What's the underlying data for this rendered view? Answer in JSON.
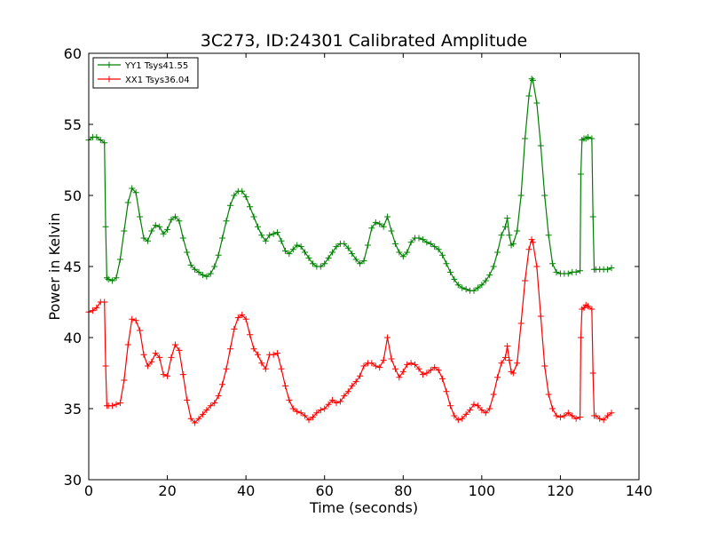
{
  "chart_data": {
    "type": "line",
    "title": "3C273, ID:24301 Calibrated Amplitude",
    "xlabel": "Time (seconds)",
    "ylabel": "Power in Kelvin",
    "xlim": [
      0,
      140
    ],
    "ylim": [
      30,
      60
    ],
    "xticks": [
      "0",
      "20",
      "40",
      "60",
      "80",
      "100",
      "120",
      "140"
    ],
    "yticks": [
      "30",
      "35",
      "40",
      "45",
      "50",
      "55",
      "60"
    ],
    "grid": false,
    "legend_position": "top-left",
    "marker": "+",
    "series": [
      {
        "name": "YY1 Tsys41.55",
        "color": "#008000",
        "points": [
          [
            0,
            53.9
          ],
          [
            1,
            54.1
          ],
          [
            2,
            54.1
          ],
          [
            3,
            53.9
          ],
          [
            4,
            53.7
          ],
          [
            4.3,
            47.8
          ],
          [
            4.6,
            44.2
          ],
          [
            5,
            44.1
          ],
          [
            6,
            44.0
          ],
          [
            7,
            44.2
          ],
          [
            8,
            45.5
          ],
          [
            9,
            47.5
          ],
          [
            10,
            49.5
          ],
          [
            11,
            50.5
          ],
          [
            12,
            50.2
          ],
          [
            13,
            48.5
          ],
          [
            14,
            47.0
          ],
          [
            15,
            46.8
          ],
          [
            16,
            47.5
          ],
          [
            17,
            47.9
          ],
          [
            18,
            47.8
          ],
          [
            19,
            47.3
          ],
          [
            20,
            47.6
          ],
          [
            21,
            48.3
          ],
          [
            22,
            48.5
          ],
          [
            23,
            48.2
          ],
          [
            24,
            47.0
          ],
          [
            25,
            46.0
          ],
          [
            26,
            45.1
          ],
          [
            27,
            44.8
          ],
          [
            28,
            44.6
          ],
          [
            29,
            44.4
          ],
          [
            30,
            44.3
          ],
          [
            31,
            44.5
          ],
          [
            32,
            45.0
          ],
          [
            33,
            45.8
          ],
          [
            34,
            47.0
          ],
          [
            35,
            48.2
          ],
          [
            36,
            49.3
          ],
          [
            37,
            50.0
          ],
          [
            38,
            50.3
          ],
          [
            39,
            50.3
          ],
          [
            40,
            49.9
          ],
          [
            41,
            49.2
          ],
          [
            42,
            48.5
          ],
          [
            43,
            47.8
          ],
          [
            44,
            47.2
          ],
          [
            45,
            46.8
          ],
          [
            46,
            47.2
          ],
          [
            47,
            47.3
          ],
          [
            48,
            47.4
          ],
          [
            49,
            46.8
          ],
          [
            50,
            46.1
          ],
          [
            51,
            45.9
          ],
          [
            52,
            46.2
          ],
          [
            53,
            46.5
          ],
          [
            54,
            46.4
          ],
          [
            55,
            46.0
          ],
          [
            56,
            45.6
          ],
          [
            57,
            45.2
          ],
          [
            58,
            45.0
          ],
          [
            59,
            45.0
          ],
          [
            60,
            45.2
          ],
          [
            61,
            45.6
          ],
          [
            62,
            46.0
          ],
          [
            63,
            46.4
          ],
          [
            64,
            46.6
          ],
          [
            65,
            46.6
          ],
          [
            66,
            46.3
          ],
          [
            67,
            45.9
          ],
          [
            68,
            45.5
          ],
          [
            69,
            45.2
          ],
          [
            70,
            45.4
          ],
          [
            71,
            46.5
          ],
          [
            72,
            47.7
          ],
          [
            73,
            48.1
          ],
          [
            74,
            48.0
          ],
          [
            75,
            47.8
          ],
          [
            76,
            48.5
          ],
          [
            77,
            47.5
          ],
          [
            78,
            46.6
          ],
          [
            79,
            46.0
          ],
          [
            80,
            45.7
          ],
          [
            81,
            46.0
          ],
          [
            82,
            46.7
          ],
          [
            83,
            47.0
          ],
          [
            84,
            47.0
          ],
          [
            85,
            46.9
          ],
          [
            86,
            46.7
          ],
          [
            87,
            46.6
          ],
          [
            88,
            46.4
          ],
          [
            89,
            46.2
          ],
          [
            90,
            45.8
          ],
          [
            91,
            45.2
          ],
          [
            92,
            44.6
          ],
          [
            93,
            44.1
          ],
          [
            94,
            43.7
          ],
          [
            95,
            43.5
          ],
          [
            96,
            43.4
          ],
          [
            97,
            43.3
          ],
          [
            98,
            43.3
          ],
          [
            99,
            43.5
          ],
          [
            100,
            43.7
          ],
          [
            101,
            44.0
          ],
          [
            102,
            44.4
          ],
          [
            103,
            45.0
          ],
          [
            104,
            46.0
          ],
          [
            105,
            47.2
          ],
          [
            106,
            47.8
          ],
          [
            106.5,
            48.4
          ],
          [
            107,
            47.2
          ],
          [
            107.5,
            46.5
          ],
          [
            108,
            46.6
          ],
          [
            109,
            47.5
          ],
          [
            110,
            50.0
          ],
          [
            111,
            54.0
          ],
          [
            112,
            57.0
          ],
          [
            112.7,
            58.2
          ],
          [
            113,
            58.1
          ],
          [
            114,
            56.5
          ],
          [
            115,
            53.5
          ],
          [
            116,
            50.0
          ],
          [
            117,
            47.2
          ],
          [
            118,
            45.2
          ],
          [
            119,
            44.6
          ],
          [
            120,
            44.5
          ],
          [
            121,
            44.5
          ],
          [
            122,
            44.5
          ],
          [
            123,
            44.6
          ],
          [
            124,
            44.6
          ],
          [
            125,
            44.7
          ],
          [
            125.2,
            51.5
          ],
          [
            125.5,
            53.9
          ],
          [
            126,
            54.0
          ],
          [
            126.5,
            54.0
          ],
          [
            127,
            54.1
          ],
          [
            128,
            54.0
          ],
          [
            128.3,
            48.5
          ],
          [
            128.6,
            44.8
          ],
          [
            129,
            44.8
          ],
          [
            130,
            44.8
          ],
          [
            131,
            44.8
          ],
          [
            132,
            44.8
          ],
          [
            133,
            44.9
          ]
        ]
      },
      {
        "name": "XX1 Tsys36.04",
        "color": "#ff0000",
        "points": [
          [
            0,
            41.8
          ],
          [
            1,
            41.9
          ],
          [
            2,
            42.1
          ],
          [
            3,
            42.5
          ],
          [
            4,
            42.5
          ],
          [
            4.3,
            38.0
          ],
          [
            4.6,
            35.2
          ],
          [
            5,
            35.2
          ],
          [
            6,
            35.2
          ],
          [
            7,
            35.3
          ],
          [
            8,
            35.4
          ],
          [
            9,
            37.0
          ],
          [
            10,
            39.5
          ],
          [
            11,
            41.3
          ],
          [
            12,
            41.2
          ],
          [
            13,
            40.5
          ],
          [
            14,
            38.8
          ],
          [
            15,
            38.0
          ],
          [
            16,
            38.3
          ],
          [
            17,
            38.9
          ],
          [
            18,
            38.6
          ],
          [
            19,
            37.4
          ],
          [
            20,
            37.3
          ],
          [
            21,
            38.6
          ],
          [
            22,
            39.5
          ],
          [
            23,
            39.1
          ],
          [
            24,
            37.4
          ],
          [
            25,
            35.6
          ],
          [
            26,
            34.3
          ],
          [
            27,
            34.0
          ],
          [
            28,
            34.3
          ],
          [
            29,
            34.6
          ],
          [
            30,
            34.9
          ],
          [
            31,
            35.2
          ],
          [
            32,
            35.4
          ],
          [
            33,
            35.9
          ],
          [
            34,
            36.7
          ],
          [
            35,
            37.8
          ],
          [
            36,
            39.2
          ],
          [
            37,
            40.6
          ],
          [
            38,
            41.4
          ],
          [
            39,
            41.6
          ],
          [
            40,
            41.3
          ],
          [
            41,
            40.2
          ],
          [
            42,
            39.2
          ],
          [
            43,
            38.8
          ],
          [
            44,
            38.2
          ],
          [
            45,
            37.8
          ],
          [
            46,
            38.8
          ],
          [
            47,
            38.8
          ],
          [
            48,
            38.9
          ],
          [
            49,
            37.8
          ],
          [
            50,
            36.6
          ],
          [
            51,
            35.6
          ],
          [
            52,
            35.0
          ],
          [
            53,
            34.8
          ],
          [
            54,
            34.7
          ],
          [
            55,
            34.5
          ],
          [
            56,
            34.2
          ],
          [
            57,
            34.4
          ],
          [
            58,
            34.7
          ],
          [
            59,
            34.9
          ],
          [
            60,
            35.0
          ],
          [
            61,
            35.3
          ],
          [
            62,
            35.6
          ],
          [
            63,
            35.4
          ],
          [
            64,
            35.5
          ],
          [
            65,
            35.9
          ],
          [
            66,
            36.2
          ],
          [
            67,
            36.6
          ],
          [
            68,
            36.9
          ],
          [
            69,
            37.3
          ],
          [
            70,
            38.0
          ],
          [
            71,
            38.2
          ],
          [
            72,
            38.2
          ],
          [
            73,
            38.0
          ],
          [
            74,
            37.9
          ],
          [
            75,
            38.4
          ],
          [
            76,
            40.0
          ],
          [
            77,
            38.5
          ],
          [
            78,
            37.8
          ],
          [
            79,
            37.2
          ],
          [
            80,
            37.6
          ],
          [
            81,
            38.1
          ],
          [
            82,
            38.2
          ],
          [
            83,
            38.1
          ],
          [
            84,
            37.8
          ],
          [
            85,
            37.4
          ],
          [
            86,
            37.5
          ],
          [
            87,
            37.7
          ],
          [
            88,
            37.9
          ],
          [
            89,
            37.7
          ],
          [
            90,
            37.1
          ],
          [
            91,
            36.2
          ],
          [
            92,
            35.2
          ],
          [
            93,
            34.5
          ],
          [
            94,
            34.2
          ],
          [
            95,
            34.3
          ],
          [
            96,
            34.6
          ],
          [
            97,
            34.9
          ],
          [
            98,
            35.3
          ],
          [
            99,
            35.2
          ],
          [
            100,
            34.9
          ],
          [
            101,
            34.7
          ],
          [
            102,
            35.0
          ],
          [
            103,
            36.0
          ],
          [
            104,
            37.2
          ],
          [
            105,
            38.2
          ],
          [
            106,
            38.6
          ],
          [
            106.5,
            39.4
          ],
          [
            107,
            38.4
          ],
          [
            107.5,
            37.6
          ],
          [
            108,
            37.5
          ],
          [
            109,
            38.2
          ],
          [
            110,
            41.0
          ],
          [
            111,
            44.0
          ],
          [
            112,
            46.2
          ],
          [
            112.7,
            46.9
          ],
          [
            113,
            46.7
          ],
          [
            114,
            45.0
          ],
          [
            115,
            41.5
          ],
          [
            116,
            38.0
          ],
          [
            117,
            36.0
          ],
          [
            118,
            35.0
          ],
          [
            119,
            34.5
          ],
          [
            120,
            34.4
          ],
          [
            121,
            34.5
          ],
          [
            122,
            34.7
          ],
          [
            123,
            34.5
          ],
          [
            124,
            34.3
          ],
          [
            125,
            34.4
          ],
          [
            125.2,
            40.0
          ],
          [
            125.5,
            42.0
          ],
          [
            126,
            42.1
          ],
          [
            126.5,
            42.3
          ],
          [
            127,
            42.2
          ],
          [
            128,
            42.0
          ],
          [
            128.3,
            37.5
          ],
          [
            128.6,
            34.5
          ],
          [
            129,
            34.5
          ],
          [
            130,
            34.3
          ],
          [
            131,
            34.2
          ],
          [
            132,
            34.5
          ],
          [
            133,
            34.7
          ]
        ]
      }
    ]
  }
}
